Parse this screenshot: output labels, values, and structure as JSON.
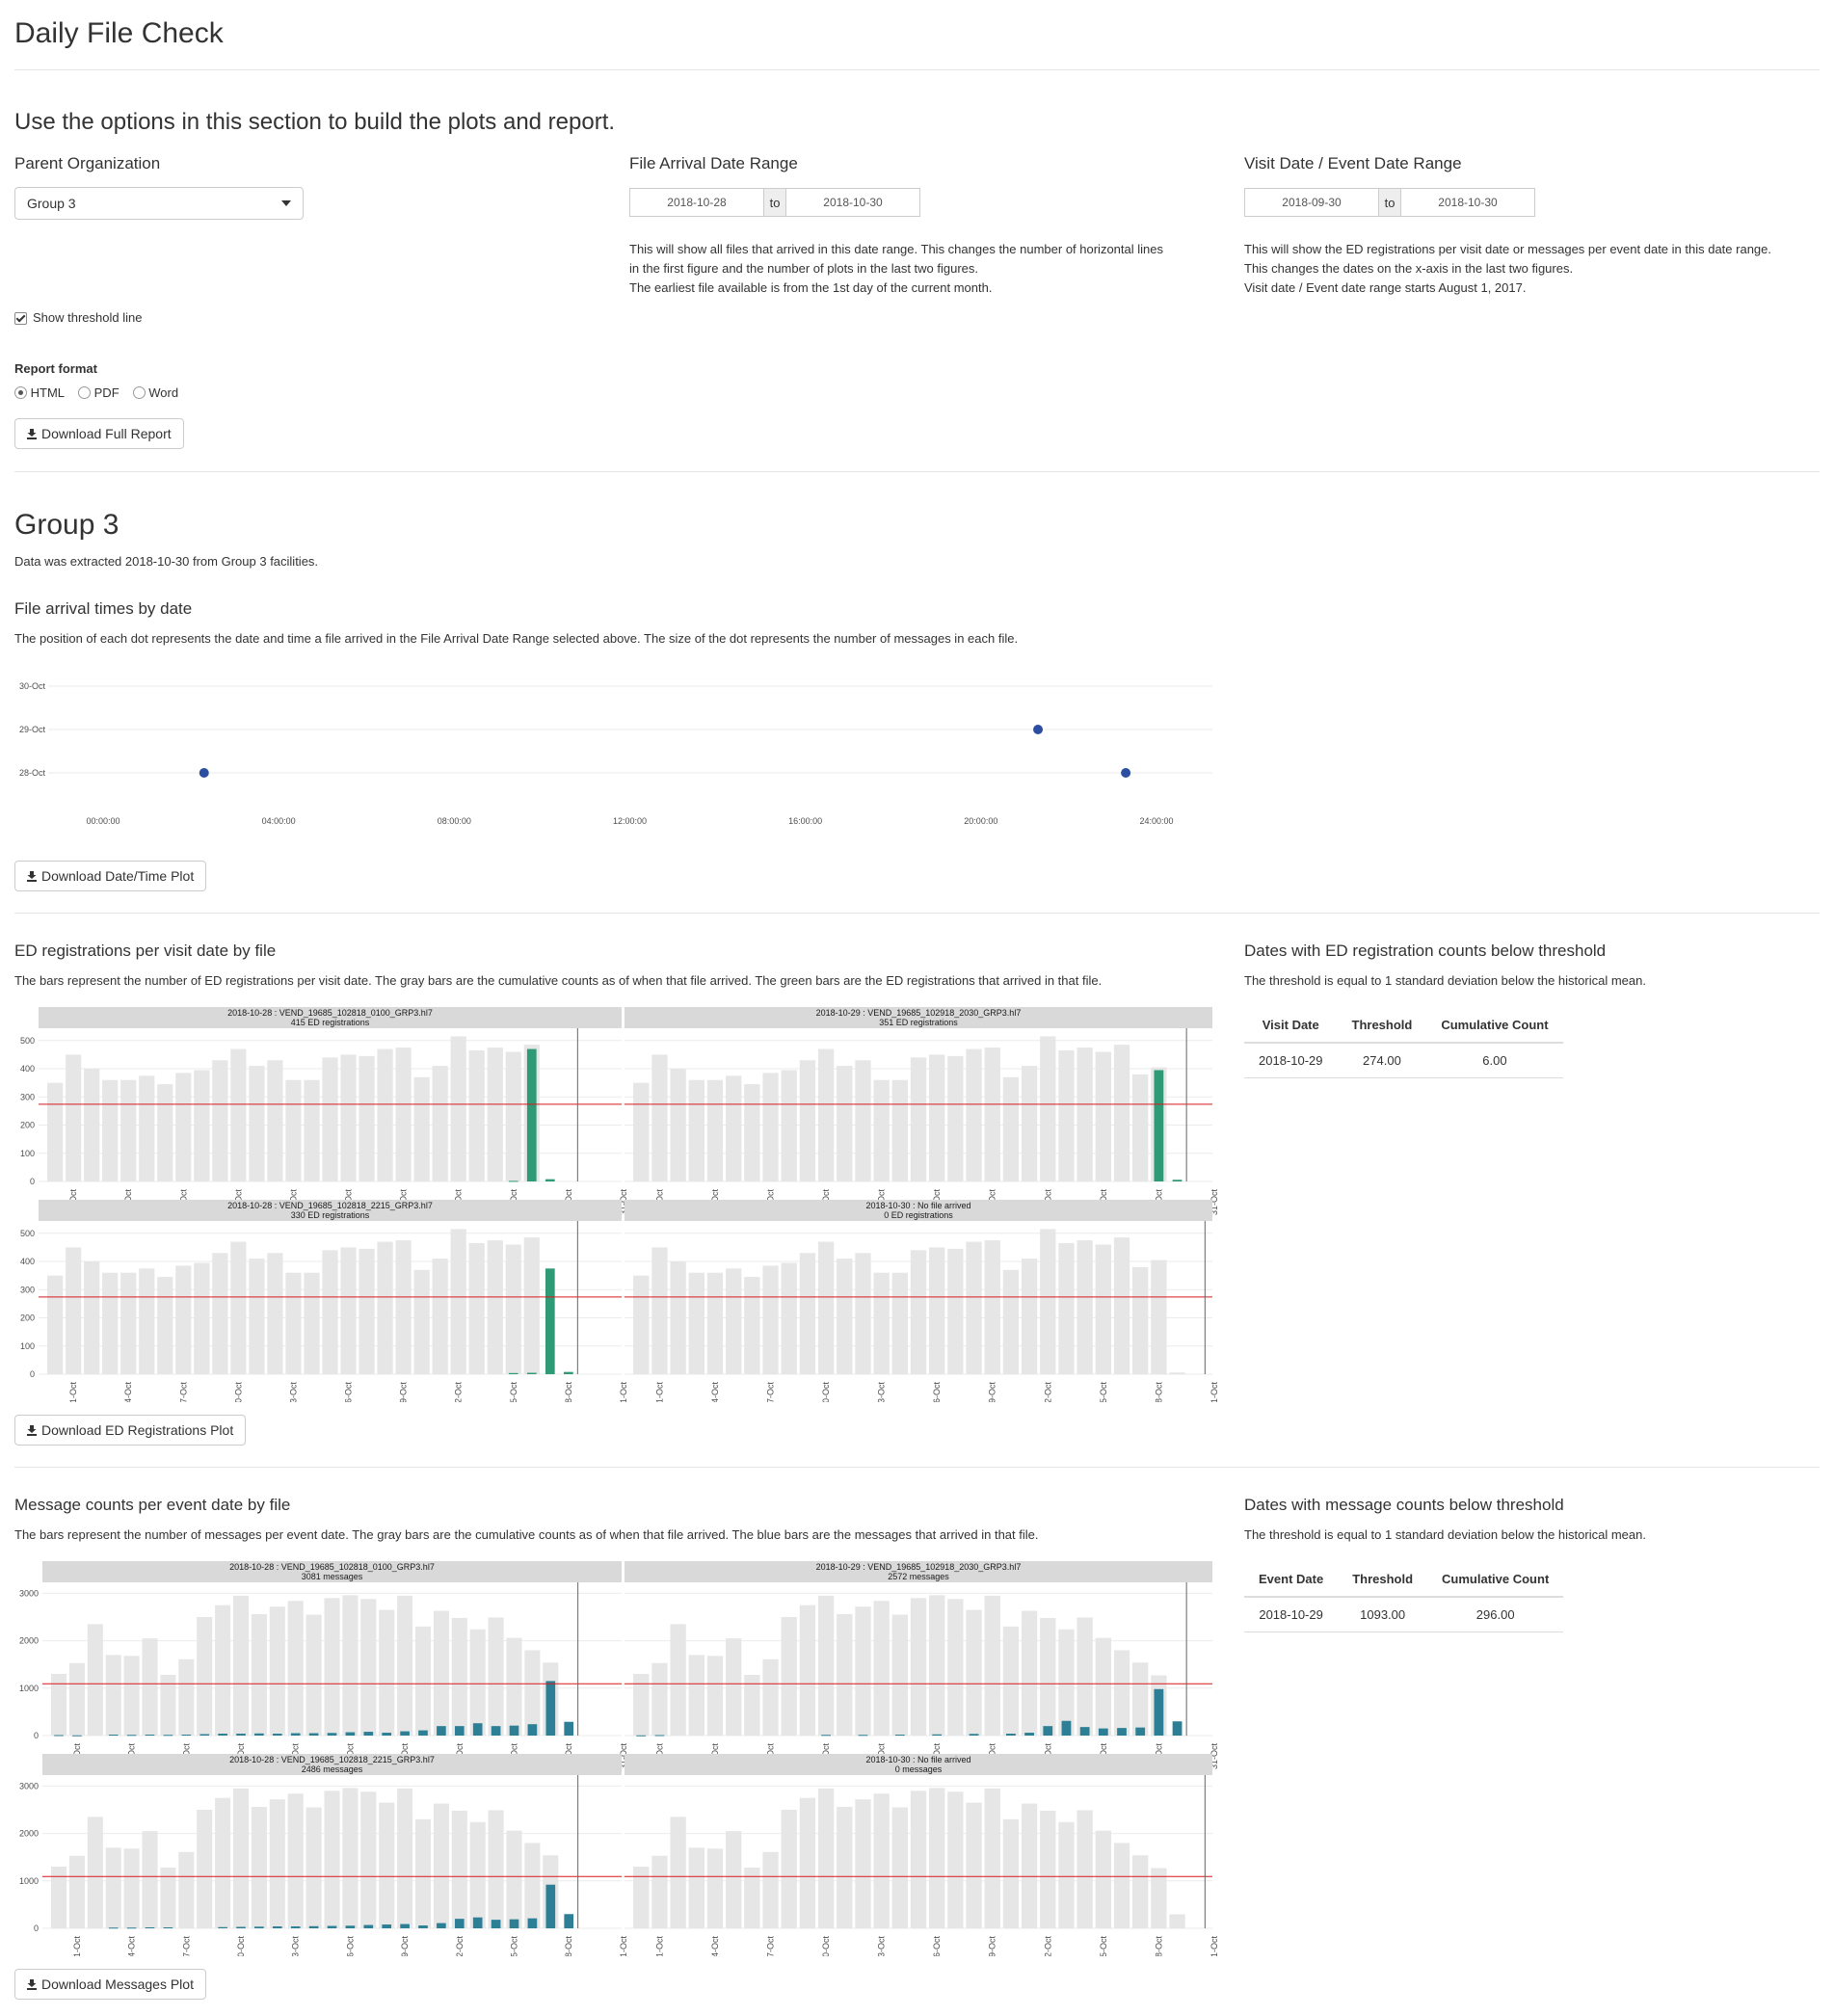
{
  "page": {
    "title": "Daily File Check"
  },
  "options": {
    "heading": "Use the options in this section to build the plots and report.",
    "parent_org": {
      "label": "Parent Organization",
      "value": "Group 3"
    },
    "file_arrival": {
      "label": "File Arrival Date Range",
      "start": "2018-10-28",
      "to": "to",
      "end": "2018-10-30",
      "help": [
        "This will show all files that arrived in this date range. This changes the number of horizontal lines",
        "in the first figure and the number of plots in the last two figures.",
        "The earliest file available is from the 1st day of the current month."
      ]
    },
    "visit_date": {
      "label": "Visit Date / Event Date Range",
      "start": "2018-09-30",
      "to": "to",
      "end": "2018-10-30",
      "help": [
        "This will show the ED registrations per visit date or messages per event date in this date range.",
        "This changes the dates on the x-axis in the last two figures.",
        "Visit date / Event date range starts August 1, 2017."
      ]
    },
    "threshold_label": "Show threshold line",
    "report_format": {
      "label": "Report format",
      "options": [
        "HTML",
        "PDF",
        "Word"
      ],
      "selected": "HTML"
    },
    "download_report": "Download Full Report"
  },
  "group": {
    "title": "Group 3",
    "extracted": "Data was extracted 2018-10-30 from Group 3 facilities."
  },
  "arrival": {
    "title": "File arrival times by date",
    "desc": "The position of each dot represents the date and time a file arrived in the File Arrival Date Range selected above. The size of the dot represents the number of messages in each file.",
    "download": "Download Date/Time Plot"
  },
  "ed": {
    "title": "ED registrations per visit date by file",
    "desc": "The bars represent the number of ED registrations per visit date. The gray bars are the cumulative counts as of when that file arrived. The green bars are the ED registrations that arrived in that file.",
    "download": "Download ED Registrations Plot",
    "side_title": "Dates with ED registration counts below threshold",
    "side_desc": "The threshold is equal to 1 standard deviation below the historical mean.",
    "table": {
      "headers": [
        "Visit Date",
        "Threshold",
        "Cumulative Count"
      ],
      "row": [
        "2018-10-29",
        "274.00",
        "6.00"
      ]
    }
  },
  "msg": {
    "title": "Message counts per event date by file",
    "desc": "The bars represent the number of messages per event date. The gray bars are the cumulative counts as of when that file arrived. The blue bars are the messages that arrived in that file.",
    "download": "Download Messages Plot",
    "side_title": "Dates with message counts below threshold",
    "side_desc": "The threshold is equal to 1 standard deviation below the historical mean.",
    "table": {
      "headers": [
        "Event Date",
        "Threshold",
        "Cumulative Count"
      ],
      "row": [
        "2018-10-29",
        "1093.00",
        "296.00"
      ]
    }
  },
  "chart_data": [
    {
      "type": "scatter",
      "y_categories": [
        "28-Oct",
        "29-Oct",
        "30-Oct"
      ],
      "x_ticks": [
        "00:00:00",
        "04:00:00",
        "08:00:00",
        "12:00:00",
        "16:00:00",
        "20:00:00",
        "24:00:00"
      ],
      "x_range_hours": [
        -0.5,
        24.8
      ],
      "points": [
        {
          "date": "28-Oct",
          "hour": 2.3
        },
        {
          "date": "29-Oct",
          "hour": 21.3
        },
        {
          "date": "28-Oct",
          "hour": 23.3
        }
      ],
      "color": "#2b4ea1"
    },
    {
      "type": "bar",
      "x_ticks": [
        "01-Oct",
        "04-Oct",
        "07-Oct",
        "10-Oct",
        "13-Oct",
        "16-Oct",
        "19-Oct",
        "22-Oct",
        "25-Oct",
        "28-Oct",
        "31-Oct"
      ],
      "y_ticks": [
        0,
        100,
        200,
        300,
        400,
        500
      ],
      "ylim": [
        0,
        530
      ],
      "threshold": 274,
      "x_dates": [
        "30-Sep",
        "01-Oct",
        "02-Oct",
        "03-Oct",
        "04-Oct",
        "05-Oct",
        "06-Oct",
        "07-Oct",
        "08-Oct",
        "09-Oct",
        "10-Oct",
        "11-Oct",
        "12-Oct",
        "13-Oct",
        "14-Oct",
        "15-Oct",
        "16-Oct",
        "17-Oct",
        "18-Oct",
        "19-Oct",
        "20-Oct",
        "21-Oct",
        "22-Oct",
        "23-Oct",
        "24-Oct",
        "25-Oct",
        "26-Oct",
        "27-Oct",
        "28-Oct",
        "29-Oct",
        "30-Oct"
      ],
      "gray": [
        350,
        450,
        400,
        360,
        360,
        375,
        345,
        385,
        395,
        430,
        470,
        410,
        430,
        360,
        360,
        440,
        450,
        445,
        470,
        475,
        370,
        410,
        515,
        465,
        475,
        460,
        485,
        380,
        405,
        6,
        0
      ],
      "panels": [
        {
          "title": "2018-10-28 : VEND_19685_102818_0100_GRP3.hl7",
          "subtitle": "415 ED registrations",
          "vline": "28-Oct",
          "gray_upto": "26-Oct",
          "colored": {
            "25-Oct": 2,
            "26-Oct": 470,
            "27-Oct": 8
          }
        },
        {
          "title": "2018-10-29 : VEND_19685_102918_2030_GRP3.hl7",
          "subtitle": "351 ED registrations",
          "vline": "29-Oct",
          "gray_upto": "28-Oct",
          "colored": {
            "28-Oct": 395,
            "29-Oct": 6
          }
        },
        {
          "title": "2018-10-28 : VEND_19685_102818_2215_GRP3.hl7",
          "subtitle": "330 ED registrations",
          "vline": "28-Oct",
          "gray_upto": "26-Oct",
          "colored": {
            "25-Oct": 4,
            "26-Oct": 5,
            "27-Oct": 375,
            "28-Oct": 8
          }
        },
        {
          "title": "2018-10-30 : No file arrived",
          "subtitle": "0 ED registrations",
          "vline": "30-Oct",
          "gray_upto": "29-Oct",
          "colored": {}
        }
      ],
      "color": "#2f9a76"
    },
    {
      "type": "bar",
      "x_ticks": [
        "01-Oct",
        "04-Oct",
        "07-Oct",
        "10-Oct",
        "13-Oct",
        "16-Oct",
        "19-Oct",
        "22-Oct",
        "25-Oct",
        "28-Oct",
        "31-Oct"
      ],
      "y_ticks": [
        0,
        1000,
        2000,
        3000
      ],
      "ylim": [
        0,
        3150
      ],
      "threshold": 1093,
      "x_dates": [
        "30-Sep",
        "01-Oct",
        "02-Oct",
        "03-Oct",
        "04-Oct",
        "05-Oct",
        "06-Oct",
        "07-Oct",
        "08-Oct",
        "09-Oct",
        "10-Oct",
        "11-Oct",
        "12-Oct",
        "13-Oct",
        "14-Oct",
        "15-Oct",
        "16-Oct",
        "17-Oct",
        "18-Oct",
        "19-Oct",
        "20-Oct",
        "21-Oct",
        "22-Oct",
        "23-Oct",
        "24-Oct",
        "25-Oct",
        "26-Oct",
        "27-Oct",
        "28-Oct",
        "29-Oct",
        "30-Oct"
      ],
      "gray": [
        1300,
        1530,
        2350,
        1700,
        1680,
        2050,
        1280,
        1610,
        2500,
        2750,
        2950,
        2560,
        2720,
        2840,
        2550,
        2900,
        2960,
        2880,
        2650,
        2950,
        2300,
        2630,
        2480,
        2240,
        2490,
        2060,
        1800,
        1540,
        1270,
        296,
        0
      ],
      "panels": [
        {
          "title": "2018-10-28 : VEND_19685_102818_0100_GRP3.hl7",
          "subtitle": "3081 messages",
          "vline": "28-Oct",
          "gray_upto": "27-Oct",
          "colored": {
            "30-Sep": 10,
            "01-Oct": 5,
            "03-Oct": 20,
            "04-Oct": 15,
            "05-Oct": 20,
            "06-Oct": 15,
            "07-Oct": 20,
            "08-Oct": 30,
            "09-Oct": 40,
            "10-Oct": 40,
            "11-Oct": 45,
            "12-Oct": 40,
            "13-Oct": 50,
            "14-Oct": 50,
            "15-Oct": 55,
            "16-Oct": 70,
            "17-Oct": 80,
            "18-Oct": 60,
            "19-Oct": 90,
            "20-Oct": 110,
            "21-Oct": 200,
            "22-Oct": 200,
            "23-Oct": 260,
            "24-Oct": 200,
            "25-Oct": 210,
            "26-Oct": 240,
            "27-Oct": 1150,
            "28-Oct": 290
          }
        },
        {
          "title": "2018-10-29 : VEND_19685_102918_2030_GRP3.hl7",
          "subtitle": "2572 messages",
          "vline": "29-Oct",
          "gray_upto": "28-Oct",
          "colored": {
            "30-Sep": 5,
            "01-Oct": 10,
            "10-Oct": 15,
            "12-Oct": 15,
            "14-Oct": 20,
            "16-Oct": 25,
            "18-Oct": 35,
            "20-Oct": 40,
            "21-Oct": 60,
            "22-Oct": 200,
            "23-Oct": 310,
            "24-Oct": 180,
            "25-Oct": 150,
            "26-Oct": 160,
            "27-Oct": 170,
            "28-Oct": 980,
            "29-Oct": 300
          }
        },
        {
          "title": "2018-10-28 : VEND_19685_102818_2215_GRP3.hl7",
          "subtitle": "2486 messages",
          "vline": "28-Oct",
          "gray_upto": "27-Oct",
          "colored": {
            "03-Oct": 15,
            "04-Oct": 15,
            "05-Oct": 20,
            "06-Oct": 20,
            "09-Oct": 25,
            "10-Oct": 30,
            "11-Oct": 35,
            "12-Oct": 40,
            "13-Oct": 40,
            "14-Oct": 45,
            "15-Oct": 50,
            "16-Oct": 55,
            "17-Oct": 70,
            "18-Oct": 80,
            "19-Oct": 90,
            "20-Oct": 60,
            "21-Oct": 110,
            "22-Oct": 200,
            "23-Oct": 230,
            "24-Oct": 180,
            "25-Oct": 190,
            "26-Oct": 210,
            "27-Oct": 920,
            "28-Oct": 300
          }
        },
        {
          "title": "2018-10-30 : No file arrived",
          "subtitle": "0 messages",
          "vline": "30-Oct",
          "gray_upto": "29-Oct",
          "colored": {}
        }
      ],
      "color": "#2c7f94"
    }
  ]
}
